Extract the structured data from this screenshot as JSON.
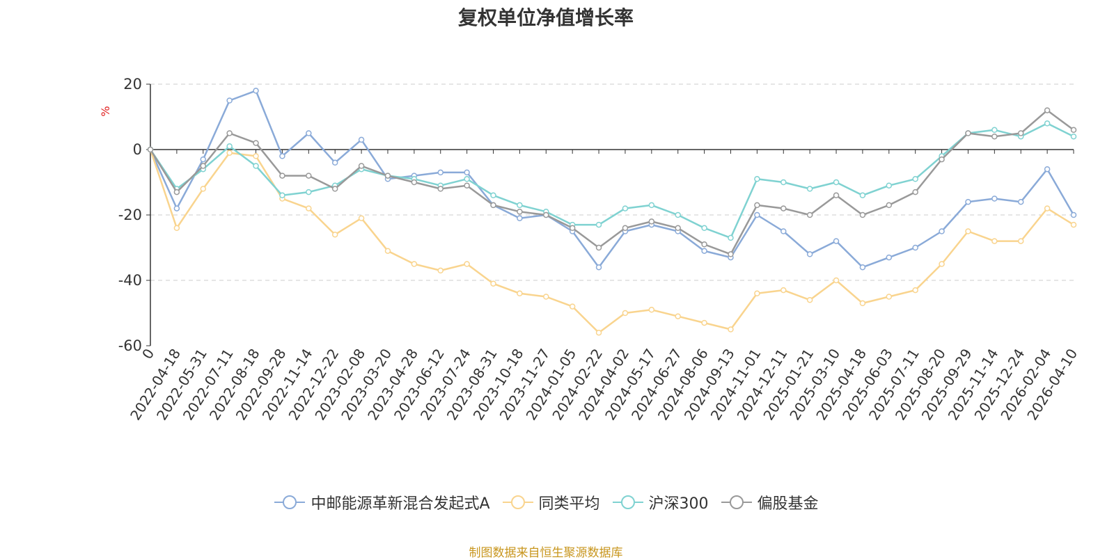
{
  "chart_data": {
    "type": "line",
    "title": "复权单位净值增长率",
    "ylabel": "%",
    "ylim": [
      -60,
      20
    ],
    "yticks": [
      20,
      0,
      -20,
      -40,
      -60
    ],
    "x_labels": [
      "0",
      "2022-04-18",
      "2022-05-31",
      "2022-07-11",
      "2022-08-18",
      "2022-09-28",
      "2022-11-14",
      "2022-12-22",
      "2023-02-08",
      "2023-03-20",
      "2023-04-28",
      "2023-06-12",
      "2023-07-24",
      "2023-08-31",
      "2023-10-18",
      "2023-11-27",
      "2024-01-05",
      "2024-02-22",
      "2024-04-02",
      "2024-05-17",
      "2024-06-27",
      "2024-08-06",
      "2024-09-13",
      "2024-11-01",
      "2024-12-11",
      "2025-01-21",
      "2025-03-10",
      "2025-04-18",
      "2025-06-03",
      "2025-07-11",
      "2025-08-20",
      "2025-09-29",
      "2025-11-14",
      "2025-12-24",
      "2026-02-04",
      "2026-04-10"
    ],
    "series": [
      {
        "name": "中邮能源革新混合发起式A",
        "color": "#8aaad8",
        "values": [
          0,
          -18,
          -3,
          15,
          18,
          -2,
          5,
          -4,
          3,
          -9,
          -8,
          -7,
          -7,
          -17,
          -21,
          -20,
          -25,
          -36,
          -25,
          -23,
          -25,
          -31,
          -33,
          -20,
          -25,
          -32,
          -28,
          -36,
          -33,
          -30,
          -25,
          -16,
          -15,
          -16,
          -6,
          -20
        ]
      },
      {
        "name": "同类平均",
        "color": "#f9d48e",
        "values": [
          0,
          -24,
          -12,
          -1,
          -2,
          -15,
          -18,
          -26,
          -21,
          -31,
          -35,
          -37,
          -35,
          -41,
          -44,
          -45,
          -48,
          -56,
          -50,
          -49,
          -51,
          -53,
          -55,
          -44,
          -43,
          -46,
          -40,
          -47,
          -45,
          -43,
          -35,
          -25,
          -28,
          -28,
          -18,
          -23
        ]
      },
      {
        "name": "沪深300",
        "color": "#7fd2d1",
        "values": [
          0,
          -12,
          -6,
          1,
          -5,
          -14,
          -13,
          -11,
          -6,
          -8,
          -9,
          -11,
          -9,
          -14,
          -17,
          -19,
          -23,
          -23,
          -18,
          -17,
          -20,
          -24,
          -27,
          -9,
          -10,
          -12,
          -10,
          -14,
          -11,
          -9,
          -2,
          5,
          6,
          4,
          8,
          4
        ]
      },
      {
        "name": "偏股基金",
        "color": "#999999",
        "values": [
          0,
          -13,
          -5,
          5,
          2,
          -8,
          -8,
          -12,
          -5,
          -8,
          -10,
          -12,
          -11,
          -17,
          -19,
          -20,
          -24,
          -30,
          -24,
          -22,
          -24,
          -29,
          -32,
          -17,
          -18,
          -20,
          -14,
          -20,
          -17,
          -13,
          -3,
          5,
          4,
          5,
          12,
          6
        ]
      }
    ]
  },
  "source_note": "制图数据来自恒生聚源数据库"
}
